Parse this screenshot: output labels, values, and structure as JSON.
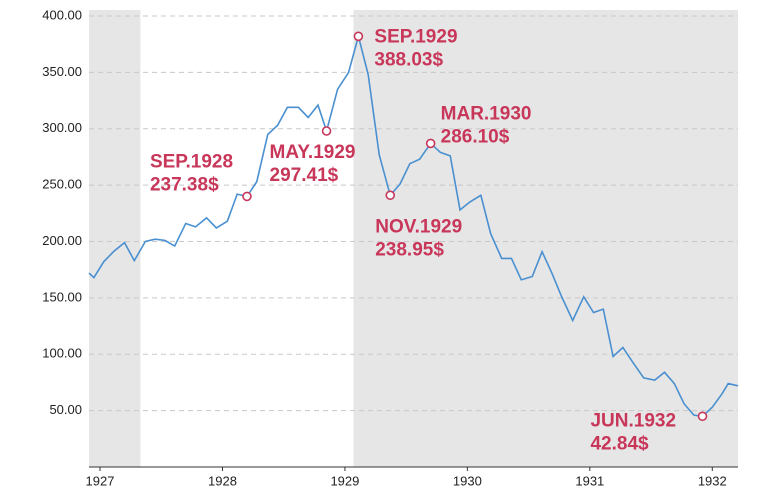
{
  "chart_data": {
    "type": "line",
    "x": [
      1926.91,
      1926.95,
      1927.03,
      1927.11,
      1927.2,
      1927.28,
      1927.37,
      1927.45,
      1927.53,
      1927.61,
      1927.7,
      1927.78,
      1927.87,
      1927.95,
      1928.04,
      1928.12,
      1928.2,
      1928.28,
      1928.37,
      1928.45,
      1928.53,
      1928.62,
      1928.7,
      1928.78,
      1928.85,
      1928.94,
      1929.03,
      1929.11,
      1929.19,
      1929.28,
      1929.37,
      1929.45,
      1929.53,
      1929.61,
      1929.7,
      1929.78,
      1929.86,
      1929.94,
      1930.02,
      1930.11,
      1930.19,
      1930.28,
      1930.36,
      1930.44,
      1930.53,
      1930.61,
      1930.69,
      1930.77,
      1930.86,
      1930.95,
      1931.03,
      1931.11,
      1931.19,
      1931.27,
      1931.35,
      1931.44,
      1931.53,
      1931.61,
      1931.69,
      1931.77,
      1931.85,
      1931.92,
      1932.0,
      1932.08,
      1932.13,
      1932.21
    ],
    "series": [
      {
        "color": "#4a90d0",
        "values": [
          172,
          168,
          182,
          191,
          199,
          183,
          200,
          202,
          201,
          196,
          216,
          213,
          221,
          212,
          218,
          242,
          240,
          253,
          295,
          303,
          319,
          319,
          310,
          321,
          298,
          335,
          350,
          382,
          348,
          277,
          241,
          251,
          269,
          273,
          287,
          279,
          276,
          228,
          235,
          241,
          207,
          185,
          185,
          166,
          169,
          191,
          172,
          151,
          130,
          151,
          137,
          140,
          98,
          106,
          93,
          79,
          77,
          84,
          74,
          56,
          46,
          45,
          53,
          65,
          74,
          72
        ]
      }
    ],
    "annotations": [
      {
        "text": "SEP.1928",
        "x": 1928.2,
        "value": 237.38,
        "value_label": "237.38$"
      },
      {
        "text": "MAY.1929",
        "x": 1928.85,
        "value": 297.41,
        "value_label": "297.41$"
      },
      {
        "text": "SEP.1929",
        "x": 1929.11,
        "value": 388.03,
        "value_label": "388.03$"
      },
      {
        "text": "NOV.1929",
        "x": 1929.37,
        "value": 238.95,
        "value_label": "238.95$"
      },
      {
        "text": "MAR.1930",
        "x": 1929.7,
        "value": 286.1,
        "value_label": "286.10$"
      },
      {
        "text": "JUN.1932",
        "x": 1931.92,
        "value": 42.84,
        "value_label": "42.84$"
      }
    ],
    "annotation_color": "#c8375a",
    "shaded_ranges": [
      [
        1926.91,
        1927.33
      ],
      [
        1929.07,
        1932.21
      ]
    ],
    "shade_color": "#e6e6e6",
    "xlim": [
      1926.91,
      1932.21
    ],
    "xticks": [
      1927,
      1928,
      1929,
      1930,
      1931,
      1932
    ],
    "ylim": [
      0,
      400
    ],
    "yticks": [
      {
        "value": 50,
        "label": "50.00"
      },
      {
        "value": 100,
        "label": "100.00"
      },
      {
        "value": 150,
        "label": "150.00"
      },
      {
        "value": 200,
        "label": "200.00"
      },
      {
        "value": 250,
        "label": "250.00"
      },
      {
        "value": 300,
        "label": "300.00"
      },
      {
        "value": 350,
        "label": "350.00"
      },
      {
        "value": 400,
        "label": "400.00"
      }
    ],
    "grid": true
  }
}
